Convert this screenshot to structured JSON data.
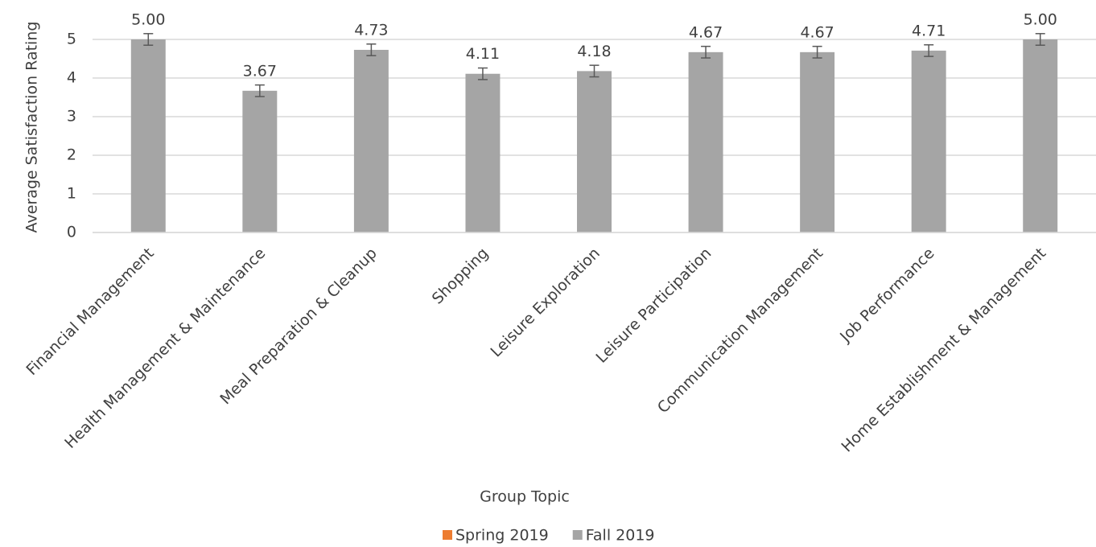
{
  "chart_data": {
    "type": "bar",
    "y_label": "Average Satisfaction Rating",
    "x_label": "Group Topic",
    "categories": [
      "Financial Management",
      "Health Management & Maintenance",
      "Meal Preparation & Cleanup",
      "Shopping",
      "Leisure Exploration",
      "Leisure Participation",
      "Communication Management",
      "Job Performance",
      "Home Establishment & Management"
    ],
    "series": [
      {
        "name": "Spring 2019",
        "color": "#ed7d31",
        "values": [
          null,
          null,
          null,
          null,
          null,
          null,
          null,
          null,
          null
        ]
      },
      {
        "name": "Fall 2019",
        "color": "#a5a5a5",
        "values": [
          5,
          3.67,
          4.73,
          4.11,
          4.18,
          4.67,
          4.67,
          4.71,
          5
        ],
        "value_labels": [
          "5.00",
          "3.67",
          "4.73",
          "4.11",
          "4.18",
          "4.67",
          "4.67",
          "4.71",
          "5.00"
        ],
        "errors": [
          0.15,
          0.15,
          0.15,
          0.15,
          0.15,
          0.15,
          0.15,
          0.15,
          0.15
        ]
      }
    ],
    "ylim": [
      0,
      5
    ],
    "yticks": [
      0,
      1,
      2,
      3,
      4,
      5
    ],
    "grid": true,
    "legend": "bottom"
  }
}
